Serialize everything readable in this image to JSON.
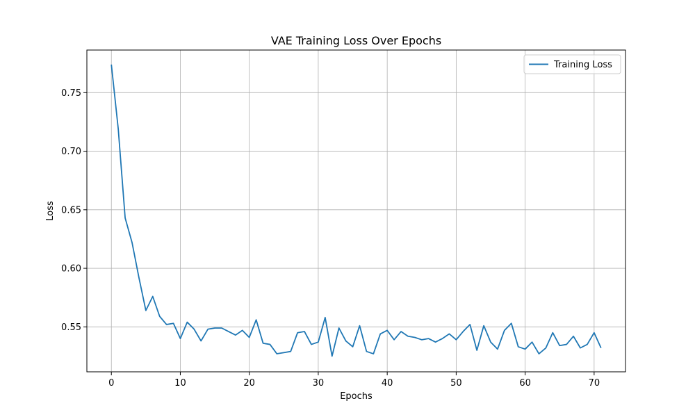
{
  "chart_data": {
    "type": "line",
    "title": "VAE Training Loss Over Epochs",
    "xlabel": "Epochs",
    "ylabel": "Loss",
    "xlim": [
      -3.55,
      74.55
    ],
    "ylim": [
      0.5116,
      0.7864
    ],
    "xticks": [
      0,
      10,
      20,
      30,
      40,
      50,
      60,
      70
    ],
    "yticks": [
      0.55,
      0.6,
      0.65,
      0.7,
      0.75
    ],
    "ytick_labels": [
      "0.55",
      "0.60",
      "0.65",
      "0.70",
      "0.75"
    ],
    "grid": true,
    "legend_position": "top-right",
    "series": [
      {
        "name": "Training Loss",
        "color": "#1f77b4",
        "x": [
          0,
          1,
          2,
          3,
          4,
          5,
          6,
          7,
          8,
          9,
          10,
          11,
          12,
          13,
          14,
          15,
          16,
          17,
          18,
          19,
          20,
          21,
          22,
          23,
          24,
          25,
          26,
          27,
          28,
          29,
          30,
          31,
          32,
          33,
          34,
          35,
          36,
          37,
          38,
          39,
          40,
          41,
          42,
          43,
          44,
          45,
          46,
          47,
          48,
          49,
          50,
          51,
          52,
          53,
          54,
          55,
          56,
          57,
          58,
          59,
          60,
          61,
          62,
          63,
          64,
          65,
          66,
          67,
          68,
          69,
          70,
          71
        ],
        "y": [
          0.774,
          0.719,
          0.643,
          0.622,
          0.592,
          0.564,
          0.576,
          0.559,
          0.552,
          0.553,
          0.54,
          0.554,
          0.548,
          0.538,
          0.548,
          0.549,
          0.549,
          0.546,
          0.543,
          0.547,
          0.541,
          0.556,
          0.536,
          0.535,
          0.527,
          0.528,
          0.529,
          0.545,
          0.546,
          0.535,
          0.537,
          0.558,
          0.525,
          0.549,
          0.538,
          0.533,
          0.551,
          0.529,
          0.527,
          0.544,
          0.547,
          0.539,
          0.546,
          0.542,
          0.541,
          0.539,
          0.54,
          0.537,
          0.54,
          0.544,
          0.539,
          0.546,
          0.552,
          0.53,
          0.551,
          0.537,
          0.531,
          0.547,
          0.553,
          0.533,
          0.531,
          0.537,
          0.527,
          0.532,
          0.545,
          0.534,
          0.535,
          0.542,
          0.532,
          0.535,
          0.545,
          0.532
        ]
      }
    ]
  }
}
